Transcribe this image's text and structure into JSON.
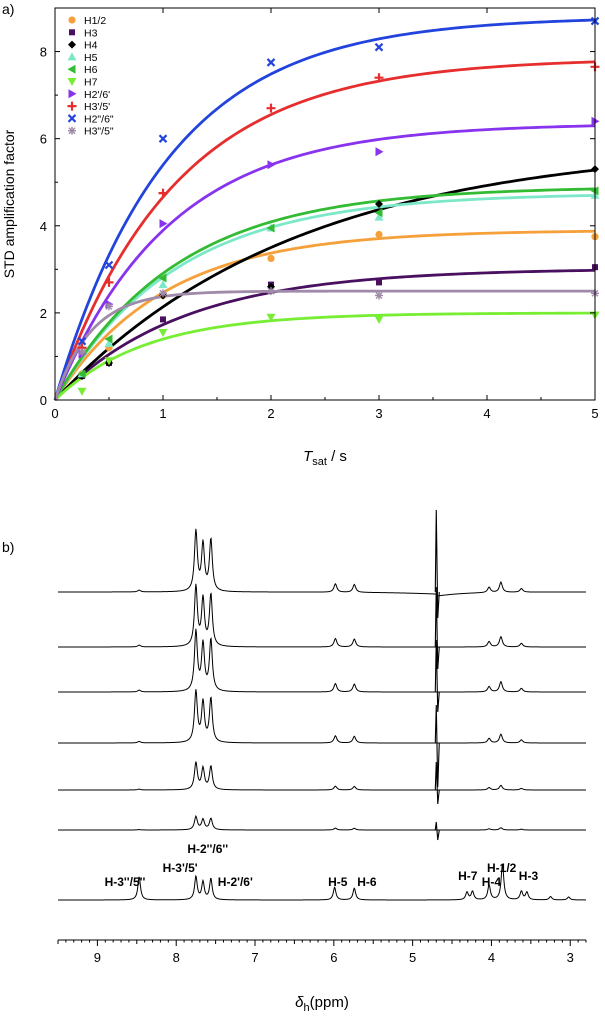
{
  "panel_a_label": "a)",
  "panel_b_label": "b)",
  "chart_data": [
    {
      "type": "scatter",
      "title": "",
      "xlabel": {
        "main": "T",
        "sub": "sat",
        "rest": " / s"
      },
      "ylabel": "STD amplification factor",
      "xlim": [
        0,
        5
      ],
      "ylim": [
        0,
        9
      ],
      "xticks": [
        0,
        1,
        2,
        3,
        4,
        5
      ],
      "yticks": [
        0,
        2,
        4,
        6,
        8
      ],
      "legend_position": "top-left",
      "series": [
        {
          "name": "H1/2",
          "color": "#f5a03a",
          "marker": "circle",
          "x": [
            0.25,
            0.5,
            1,
            2,
            3,
            5
          ],
          "y": [
            0.6,
            1.2,
            2.4,
            3.25,
            3.8,
            3.75
          ],
          "fit": {
            "amax": 3.9,
            "k": 1.0
          }
        },
        {
          "name": "H3",
          "color": "#4a1060",
          "marker": "square",
          "x": [
            0.25,
            0.5,
            1,
            2,
            3,
            5
          ],
          "y": [
            0.55,
            0.85,
            1.85,
            2.65,
            2.7,
            3.05
          ],
          "fit": {
            "amax": 3.02,
            "k": 0.85
          }
        },
        {
          "name": "H4",
          "color": "#000000",
          "marker": "diamond",
          "x": [
            0.25,
            0.5,
            1,
            2,
            3,
            5
          ],
          "y": [
            0.55,
            0.85,
            2.4,
            2.6,
            4.5,
            5.3
          ],
          "fit": {
            "amax": 5.9,
            "k": 0.45
          }
        },
        {
          "name": "H5",
          "color": "#7de8c8",
          "marker": "triangle-up",
          "x": [
            0.25,
            0.5,
            1,
            2,
            3,
            5
          ],
          "y": [
            0.6,
            1.3,
            2.65,
            3.95,
            4.2,
            4.7
          ],
          "fit": {
            "amax": 4.75,
            "k": 0.9
          }
        },
        {
          "name": "H6",
          "color": "#33bb33",
          "marker": "triangle-left",
          "x": [
            0.25,
            0.5,
            1,
            2,
            3,
            5
          ],
          "y": [
            0.6,
            1.4,
            2.8,
            3.95,
            4.3,
            4.8
          ],
          "fit": {
            "amax": 4.9,
            "k": 0.9
          }
        },
        {
          "name": "H7",
          "color": "#77ee33",
          "marker": "triangle-down",
          "x": [
            0.25,
            0.5,
            1,
            2,
            3,
            5
          ],
          "y": [
            0.2,
            0.9,
            1.55,
            1.9,
            1.85,
            1.95
          ],
          "fit": {
            "amax": 2.0,
            "k": 1.2
          }
        },
        {
          "name": "H2'/6'",
          "color": "#8833ee",
          "marker": "triangle-right",
          "x": [
            0.25,
            0.5,
            1,
            2,
            3,
            5
          ],
          "y": [
            1.05,
            2.2,
            4.05,
            5.4,
            5.7,
            6.4
          ],
          "fit": {
            "amax": 6.35,
            "k": 0.95
          }
        },
        {
          "name": "H3'/5'",
          "color": "#e62e2e",
          "marker": "plus",
          "x": [
            0.25,
            0.5,
            1,
            2,
            3,
            5
          ],
          "y": [
            1.2,
            2.7,
            4.75,
            6.7,
            7.4,
            7.65
          ],
          "fit": {
            "amax": 7.85,
            "k": 0.9
          }
        },
        {
          "name": "H2\"/6\"",
          "color": "#2244dd",
          "marker": "cross",
          "x": [
            0.25,
            0.5,
            1,
            2,
            3,
            5
          ],
          "y": [
            1.35,
            3.1,
            6.0,
            7.75,
            8.1,
            8.7
          ],
          "fit": {
            "amax": 8.8,
            "k": 0.95
          }
        },
        {
          "name": "H3\"/5\"",
          "color": "#a08aaa",
          "marker": "asterisk",
          "x": [
            0.25,
            0.5,
            1,
            2,
            3,
            5
          ],
          "y": [
            1.1,
            2.15,
            2.45,
            2.5,
            2.4,
            2.45
          ],
          "fit": {
            "amax": 2.5,
            "k": 3.0
          }
        }
      ]
    },
    {
      "type": "line",
      "title": "",
      "xlabel": {
        "main": "δ",
        "sub": "h",
        "rest": "(ppm)"
      },
      "xlim": [
        9.5,
        2.8
      ],
      "xticks": [
        9,
        8,
        7,
        6,
        5,
        4,
        3
      ],
      "trace_scales": [
        1.0,
        1.0,
        1.0,
        0.85,
        0.45,
        0.22
      ],
      "std_peaks": [
        {
          "ppm": 8.47,
          "h": 0.03
        },
        {
          "ppm": 7.75,
          "h": 1.0
        },
        {
          "ppm": 7.66,
          "h": 0.78
        },
        {
          "ppm": 7.56,
          "h": 0.86
        },
        {
          "ppm": 5.98,
          "h": 0.14
        },
        {
          "ppm": 5.74,
          "h": 0.13
        },
        {
          "ppm": 4.03,
          "h": 0.09
        },
        {
          "ppm": 3.88,
          "h": 0.17
        },
        {
          "ppm": 3.62,
          "h": 0.06
        }
      ],
      "reference_peaks": [
        {
          "ppm": 8.47,
          "h": 0.55
        },
        {
          "ppm": 7.75,
          "h": 0.55
        },
        {
          "ppm": 7.66,
          "h": 0.42
        },
        {
          "ppm": 7.56,
          "h": 0.5
        },
        {
          "ppm": 5.99,
          "h": 0.3
        },
        {
          "ppm": 5.74,
          "h": 0.28
        },
        {
          "ppm": 4.31,
          "h": 0.18
        },
        {
          "ppm": 4.24,
          "h": 0.2
        },
        {
          "ppm": 4.03,
          "h": 0.35
        },
        {
          "ppm": 3.86,
          "h": 0.85
        },
        {
          "ppm": 3.62,
          "h": 0.2
        },
        {
          "ppm": 3.55,
          "h": 0.18
        },
        {
          "ppm": 3.25,
          "h": 0.08
        },
        {
          "ppm": 3.02,
          "h": 0.07
        }
      ],
      "water_ppm": 4.7,
      "annotations": [
        {
          "label": "H-3''/5''",
          "ppm": 8.65,
          "row": 2
        },
        {
          "label": "H-3'/5'",
          "ppm": 7.95,
          "row": 1
        },
        {
          "label": "H-2''/6''",
          "ppm": 7.6,
          "row": 0
        },
        {
          "label": "H-2'/6'",
          "ppm": 7.25,
          "row": 2
        },
        {
          "label": "H-5",
          "ppm": 5.95,
          "row": 2
        },
        {
          "label": "H-6",
          "ppm": 5.58,
          "row": 2
        },
        {
          "label": "H-7",
          "ppm": 4.3,
          "row": 3
        },
        {
          "label": "H-4",
          "ppm": 4.0,
          "row": 2
        },
        {
          "label": "H-1/2",
          "ppm": 3.87,
          "row": 1
        },
        {
          "label": "H-3",
          "ppm": 3.53,
          "row": 3
        }
      ]
    }
  ]
}
